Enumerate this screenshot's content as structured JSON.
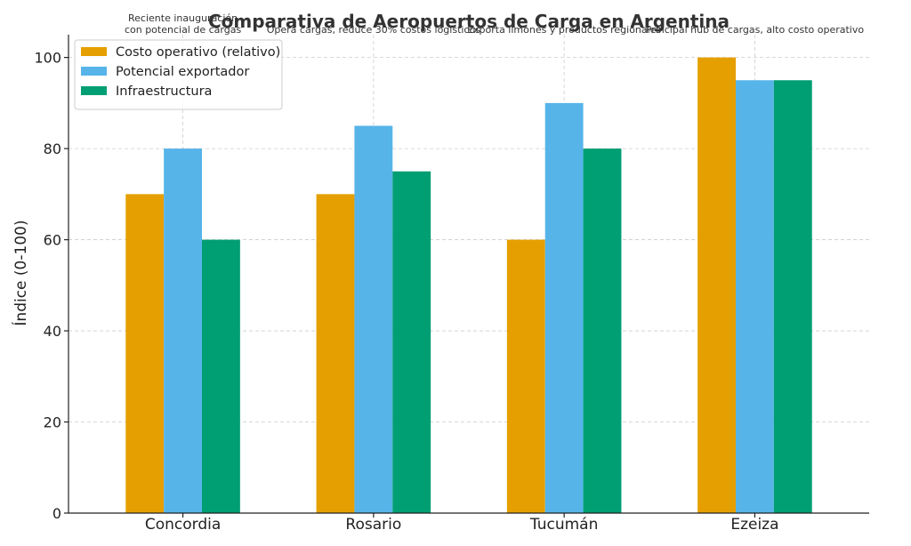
{
  "chart_data": {
    "type": "bar",
    "title": "Comparativa de Aeropuertos de Carga en Argentina",
    "xlabel": "",
    "ylabel": "Índice (0-100)",
    "ylim": [
      0,
      105
    ],
    "yticks": [
      0,
      20,
      40,
      60,
      80,
      100
    ],
    "grid": true,
    "legend_position": "top-left",
    "categories": [
      "Concordia",
      "Rosario",
      "Tucumán",
      "Ezeiza"
    ],
    "series": [
      {
        "name": "Costo operativo (relativo)",
        "color": "#E69F00",
        "values": [
          70,
          70,
          60,
          100
        ]
      },
      {
        "name": "Potencial exportador",
        "color": "#56B4E9",
        "values": [
          80,
          85,
          90,
          95
        ]
      },
      {
        "name": "Infraestructura",
        "color": "#009E73",
        "values": [
          60,
          75,
          80,
          95
        ]
      }
    ],
    "annotations": [
      {
        "category": "Concordia",
        "lines": [
          "Reciente inauguración",
          "con potencial de cargas"
        ]
      },
      {
        "category": "Rosario",
        "lines": [
          "Opera cargas, reduce 30% costos logísticos"
        ]
      },
      {
        "category": "Tucumán",
        "lines": [
          "Exporta limones y productos regionales"
        ]
      },
      {
        "category": "Ezeiza",
        "lines": [
          "Principal hub de cargas, alto costo operativo"
        ]
      }
    ]
  }
}
